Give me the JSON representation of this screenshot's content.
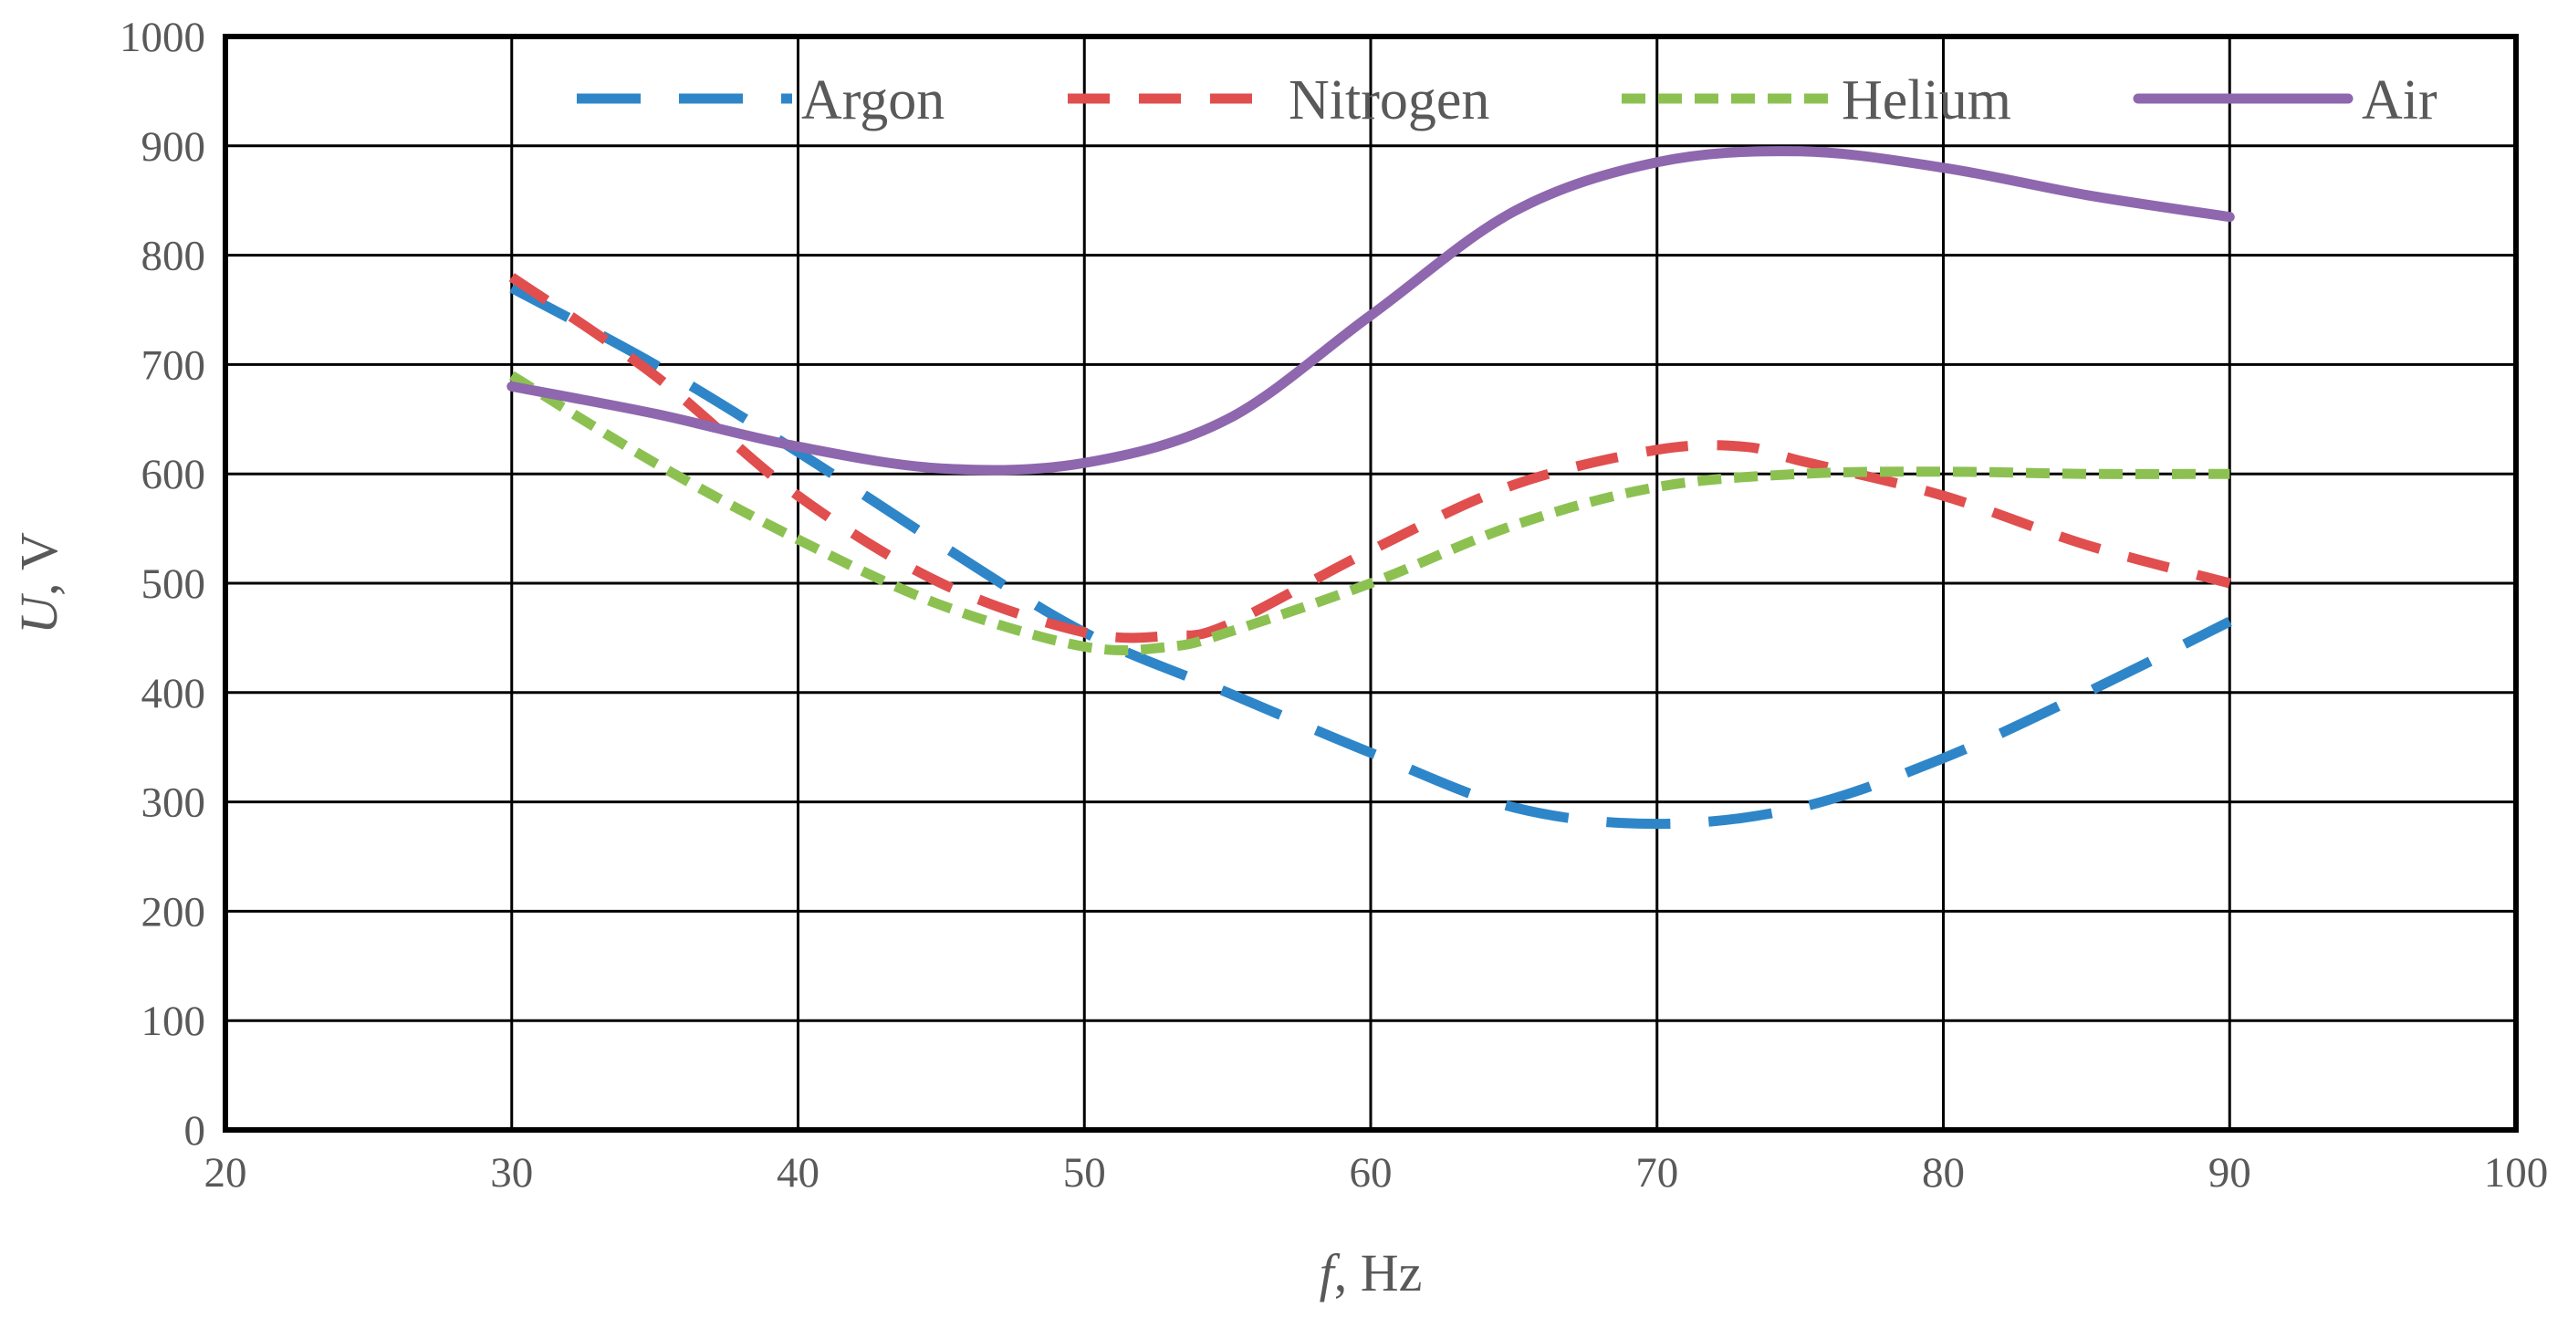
{
  "chart_data": {
    "type": "line",
    "title": "",
    "xlabel": {
      "italic": "f",
      "rest": ", Hz"
    },
    "ylabel": {
      "italic": "U",
      "rest": ", V"
    },
    "xlim": [
      20,
      100
    ],
    "ylim": [
      0,
      1000
    ],
    "xticks": [
      20,
      30,
      40,
      50,
      60,
      70,
      80,
      90,
      100
    ],
    "yticks": [
      0,
      100,
      200,
      300,
      400,
      500,
      600,
      700,
      800,
      900,
      1000
    ],
    "grid": true,
    "legend_position": "top",
    "series": [
      {
        "name": "Argon",
        "color": "#2E86C9",
        "style": "long-dash",
        "points": [
          [
            30,
            770
          ],
          [
            35,
            700
          ],
          [
            40,
            620
          ],
          [
            45,
            535
          ],
          [
            50,
            455
          ],
          [
            55,
            400
          ],
          [
            60,
            345
          ],
          [
            65,
            295
          ],
          [
            70,
            280
          ],
          [
            75,
            295
          ],
          [
            80,
            340
          ],
          [
            85,
            400
          ],
          [
            90,
            465
          ]
        ]
      },
      {
        "name": "Nitrogen",
        "color": "#E04E4E",
        "style": "dash",
        "points": [
          [
            30,
            780
          ],
          [
            35,
            690
          ],
          [
            40,
            580
          ],
          [
            45,
            500
          ],
          [
            50,
            455
          ],
          [
            53,
            452
          ],
          [
            55,
            462
          ],
          [
            60,
            530
          ],
          [
            65,
            590
          ],
          [
            70,
            622
          ],
          [
            73,
            625
          ],
          [
            75,
            612
          ],
          [
            80,
            580
          ],
          [
            85,
            535
          ],
          [
            90,
            500
          ]
        ]
      },
      {
        "name": "Helium",
        "color": "#8CC152",
        "style": "short-dash",
        "points": [
          [
            30,
            690
          ],
          [
            35,
            610
          ],
          [
            40,
            540
          ],
          [
            45,
            480
          ],
          [
            50,
            442
          ],
          [
            53,
            442
          ],
          [
            55,
            455
          ],
          [
            60,
            500
          ],
          [
            65,
            553
          ],
          [
            70,
            588
          ],
          [
            75,
            600
          ],
          [
            80,
            602
          ],
          [
            85,
            600
          ],
          [
            90,
            600
          ]
        ]
      },
      {
        "name": "Air",
        "color": "#8E67AE",
        "style": "solid",
        "points": [
          [
            30,
            680
          ],
          [
            35,
            655
          ],
          [
            40,
            625
          ],
          [
            45,
            605
          ],
          [
            50,
            610
          ],
          [
            55,
            650
          ],
          [
            60,
            745
          ],
          [
            65,
            840
          ],
          [
            70,
            885
          ],
          [
            75,
            895
          ],
          [
            80,
            880
          ],
          [
            85,
            855
          ],
          [
            90,
            835
          ]
        ]
      }
    ]
  }
}
